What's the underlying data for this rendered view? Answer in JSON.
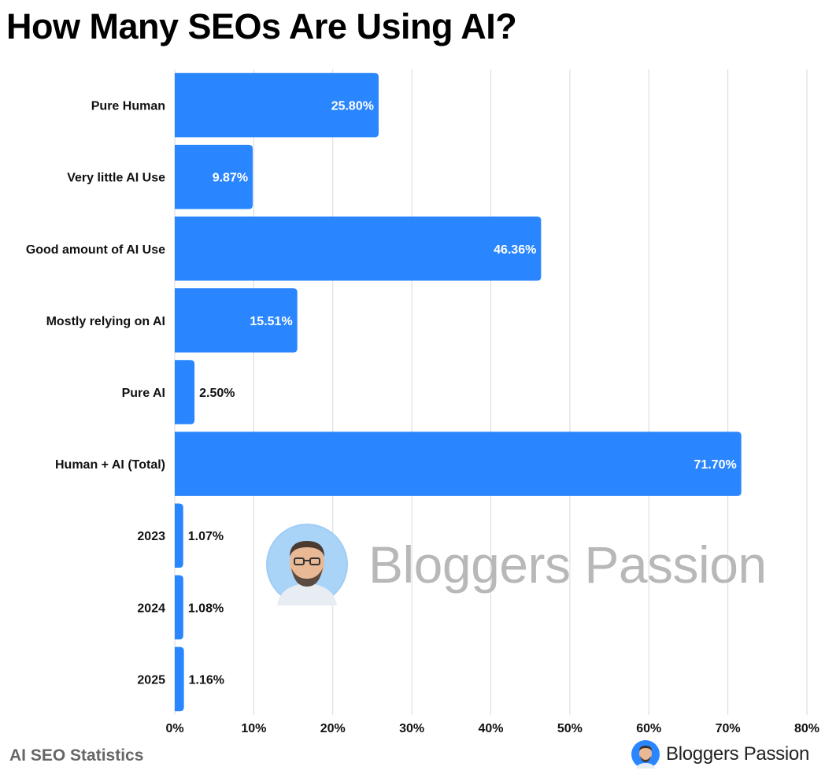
{
  "title": "How Many SEOs Are Using AI?",
  "footer": {
    "caption": "AI SEO Statistics",
    "brand": "Bloggers Passion"
  },
  "watermark": {
    "text": "Bloggers Passion",
    "icon": "avatar-icon"
  },
  "colors": {
    "bar": "#2a86ff",
    "grid": "#d9d9d9",
    "inside_label": "#ffffff",
    "outside_label": "#111111"
  },
  "chart_data": {
    "type": "bar",
    "orientation": "horizontal",
    "categories": [
      "Pure Human",
      "Very little AI Use",
      "Good amount of AI Use",
      "Mostly relying on AI",
      "Pure AI",
      "Human + AI (Total)",
      "2023",
      "2024",
      "2025"
    ],
    "values": [
      25.8,
      9.87,
      46.36,
      15.51,
      2.5,
      71.7,
      1.07,
      1.08,
      1.16
    ],
    "value_labels": [
      "25.80%",
      "9.87%",
      "46.36%",
      "15.51%",
      "2.50%",
      "71.70%",
      "1.07%",
      "1.08%",
      "1.16%"
    ],
    "xlim": [
      0,
      80
    ],
    "xticks": [
      0,
      10,
      20,
      30,
      40,
      50,
      60,
      70,
      80
    ],
    "xtick_labels": [
      "0%",
      "10%",
      "20%",
      "30%",
      "40%",
      "50%",
      "60%",
      "70%",
      "80%"
    ],
    "grid": true,
    "legend": "none"
  }
}
